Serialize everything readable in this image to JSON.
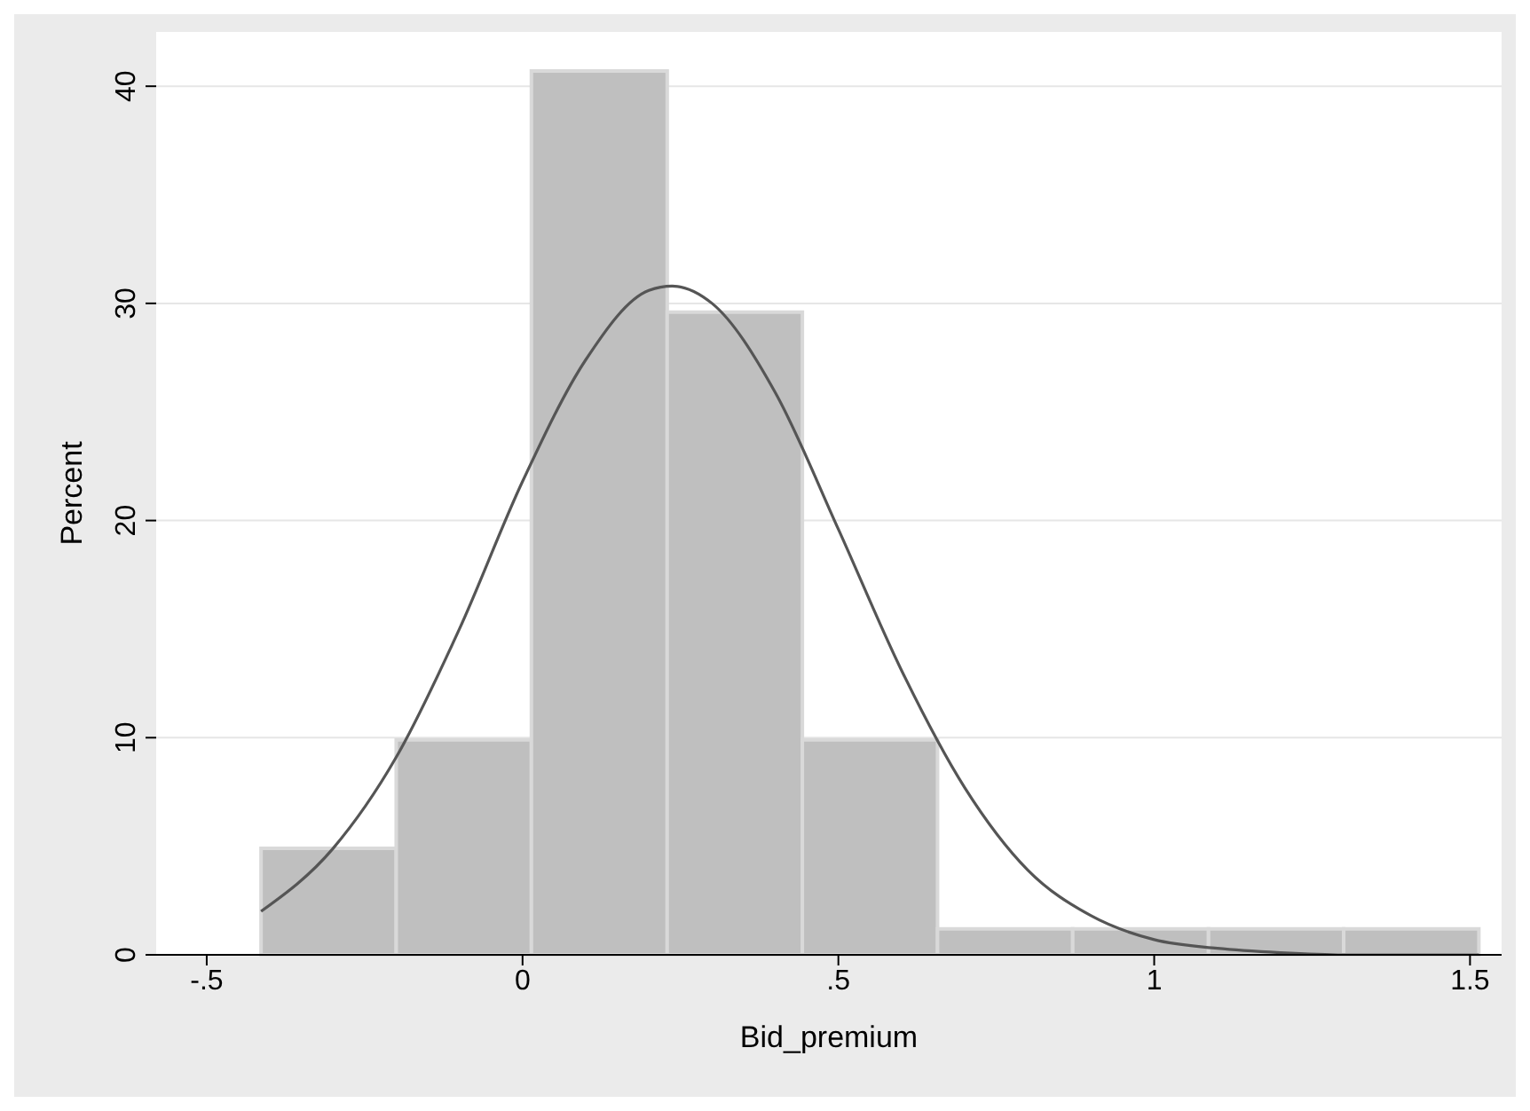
{
  "chart_data": {
    "type": "histogram",
    "xlabel": "Bid_premium",
    "ylabel": "Percent",
    "bins": [
      -0.414,
      -0.2,
      0.014,
      0.229,
      0.443,
      0.657,
      0.871,
      1.086,
      1.3,
      1.514
    ],
    "values": [
      4.9,
      9.9,
      40.7,
      29.6,
      9.9,
      1.2,
      1.2,
      1.2,
      1.2
    ],
    "color": "#bfbfbf",
    "series": [
      {
        "type": "line",
        "color": "#555555",
        "x": [
          -0.414,
          -0.3,
          -0.2,
          -0.1,
          0,
          0.1,
          0.2,
          0.237,
          0.3,
          0.4,
          0.5,
          0.6,
          0.7,
          0.8,
          0.9,
          1,
          1.1,
          1.2,
          1.3,
          1.514
        ],
        "values": [
          2,
          4.9,
          9.1,
          15,
          21.8,
          27.4,
          30.6,
          30.8,
          30,
          25.9,
          19.6,
          13.1,
          7.7,
          3.9,
          1.8,
          0.7,
          0.3,
          0.1,
          0,
          0
        ]
      }
    ],
    "xlim": [
      -0.58,
      1.55
    ],
    "ylim": [
      0,
      42.5
    ],
    "xticks": [
      {
        "value": -0.5,
        "label": "-.5"
      },
      0,
      {
        "value": 0.5,
        "label": ".5"
      },
      1,
      1.5
    ],
    "yticks": [
      0,
      10,
      20,
      30,
      40
    ],
    "grid": "y",
    "marker": "none"
  }
}
